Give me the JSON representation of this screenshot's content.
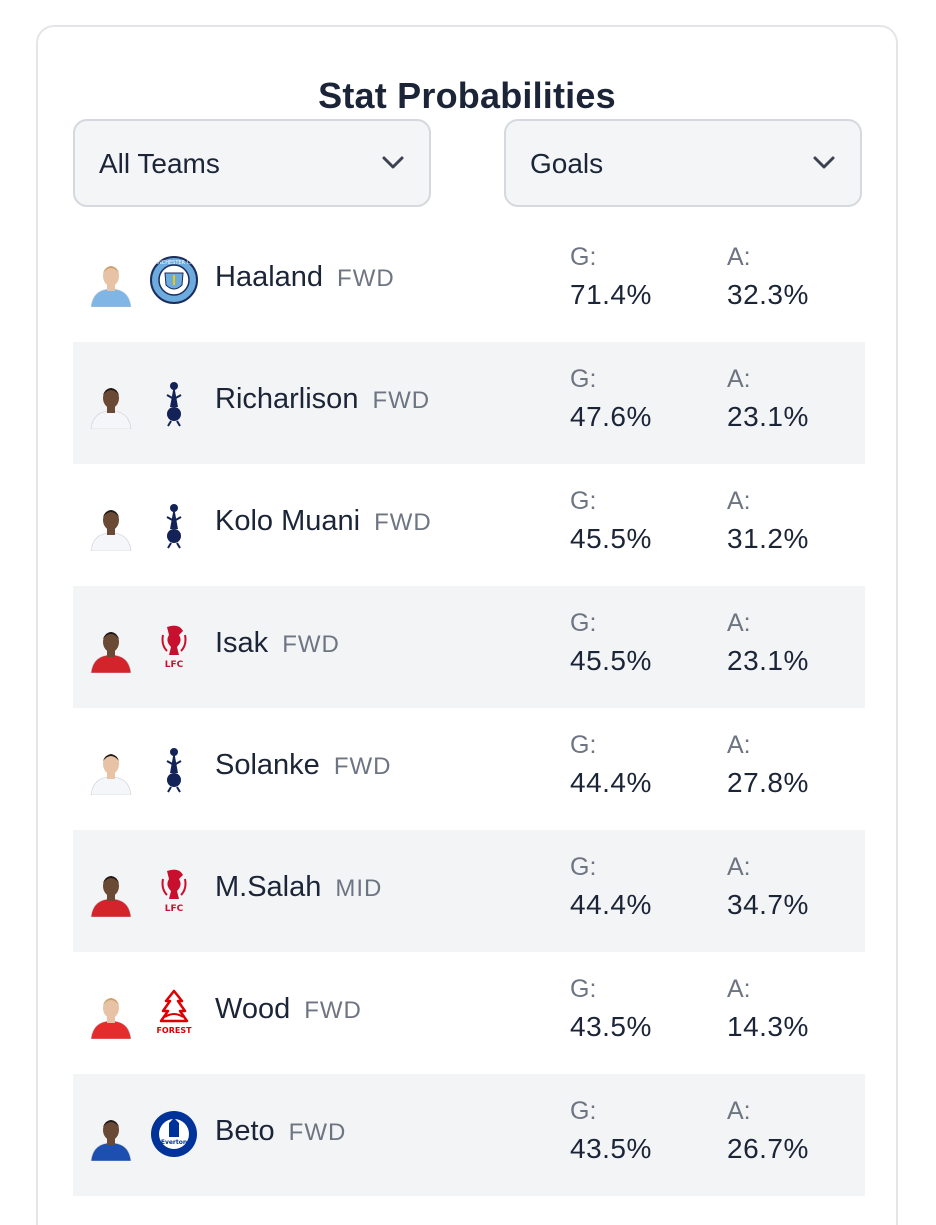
{
  "header": {
    "title": "Stat Probabilities"
  },
  "filters": {
    "team": {
      "selected": "All Teams"
    },
    "stat": {
      "selected": "Goals"
    }
  },
  "stat_labels": {
    "goals": "G:",
    "assists": "A:"
  },
  "players": [
    {
      "name": "Haaland",
      "pos": "FWD",
      "goal": "71.4%",
      "assist": "32.3%",
      "club": "man-city",
      "crest_text": "MANCHESTER CITY",
      "kit": "#7fb6e6"
    },
    {
      "name": "Richarlison",
      "pos": "FWD",
      "goal": "47.6%",
      "assist": "23.1%",
      "club": "tottenham",
      "kit": "#f4f6fa"
    },
    {
      "name": "Kolo Muani",
      "pos": "FWD",
      "goal": "45.5%",
      "assist": "31.2%",
      "club": "tottenham",
      "kit": "#f4f6fa"
    },
    {
      "name": "Isak",
      "pos": "FWD",
      "goal": "45.5%",
      "assist": "23.1%",
      "club": "liverpool",
      "crest_text": "LFC",
      "kit": "#d3242b"
    },
    {
      "name": "Solanke",
      "pos": "FWD",
      "goal": "44.4%",
      "assist": "27.8%",
      "club": "tottenham",
      "kit": "#f4f6fa"
    },
    {
      "name": "M.Salah",
      "pos": "MID",
      "goal": "44.4%",
      "assist": "34.7%",
      "club": "liverpool",
      "crest_text": "LFC",
      "kit": "#d3242b"
    },
    {
      "name": "Wood",
      "pos": "FWD",
      "goal": "43.5%",
      "assist": "14.3%",
      "club": "nottingham-forest",
      "crest_text": "FOREST",
      "kit": "#e52b2b"
    },
    {
      "name": "Beto",
      "pos": "FWD",
      "goal": "43.5%",
      "assist": "26.7%",
      "club": "everton",
      "crest_text": "Everton",
      "kit": "#1d4fb0"
    }
  ],
  "colors": {
    "row_alt": "#f3f4f6",
    "text_primary": "#1b2537",
    "text_muted": "#6e7582",
    "spurs_navy": "#132257",
    "liverpool_red": "#c8102e",
    "forest_red": "#dd0000",
    "everton_blue": "#003399",
    "city_blue": "#6cabdd"
  }
}
